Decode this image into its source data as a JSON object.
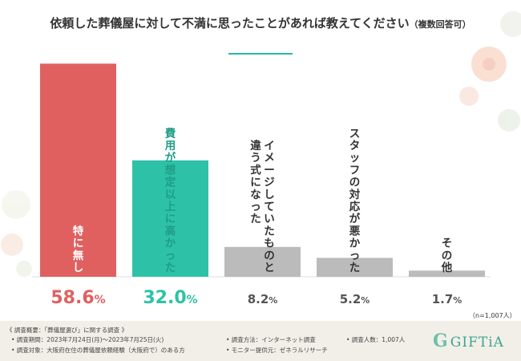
{
  "header": {
    "title": "依頼した葬儀屋に対して不満に思ったことがあれば教えてください",
    "subtitle": "（複数回答可）"
  },
  "chart_data": {
    "type": "bar",
    "title": "依頼した葬儀屋に対して不満に思ったことがあれば教えてください（複数回答可）",
    "categories": [
      "特に無し",
      "費用が想定以上に高かった",
      "イメージしていたものと違う式になった",
      "スタッフの対応が悪かった",
      "その他"
    ],
    "category_lines": [
      [
        "特に無し"
      ],
      [
        "費用が想定以上に高かった"
      ],
      [
        "イメージしていたものと",
        "違う式になった"
      ],
      [
        "スタッフの対応が悪かった"
      ],
      [
        "その他"
      ]
    ],
    "values": [
      58.6,
      32.0,
      8.2,
      5.2,
      1.7
    ],
    "value_labels": [
      "58.6",
      "32.0",
      "8.2",
      "5.2",
      "1.7"
    ],
    "unit": "%",
    "ylim": [
      0,
      60
    ],
    "colors": [
      "#e06060",
      "#2dc2a8",
      "#bbbbbb",
      "#bbbbbb",
      "#bbbbbb"
    ],
    "value_colors": [
      "#e06060",
      "#2dc2a8",
      "#555555",
      "#555555",
      "#555555"
    ],
    "sample_note": "（n=1,007人）"
  },
  "footer": {
    "overview": "《 調査概要：「葬儀屋選び」に関する調査 》",
    "period": "• 調査期間：2023年7月24日(月)～2023年7月25日(火)",
    "target": "• 調査対象：大阪府在住の葬儀屋依頼経験（大阪府で）のある方",
    "method": "• 調査方法：インターネット調査",
    "monitor": "• モニター提供元：ゼネラルリサーチ",
    "count": "• 調査人数：1,007人"
  },
  "brand": {
    "mark": "G",
    "name": "GIFTiA"
  }
}
